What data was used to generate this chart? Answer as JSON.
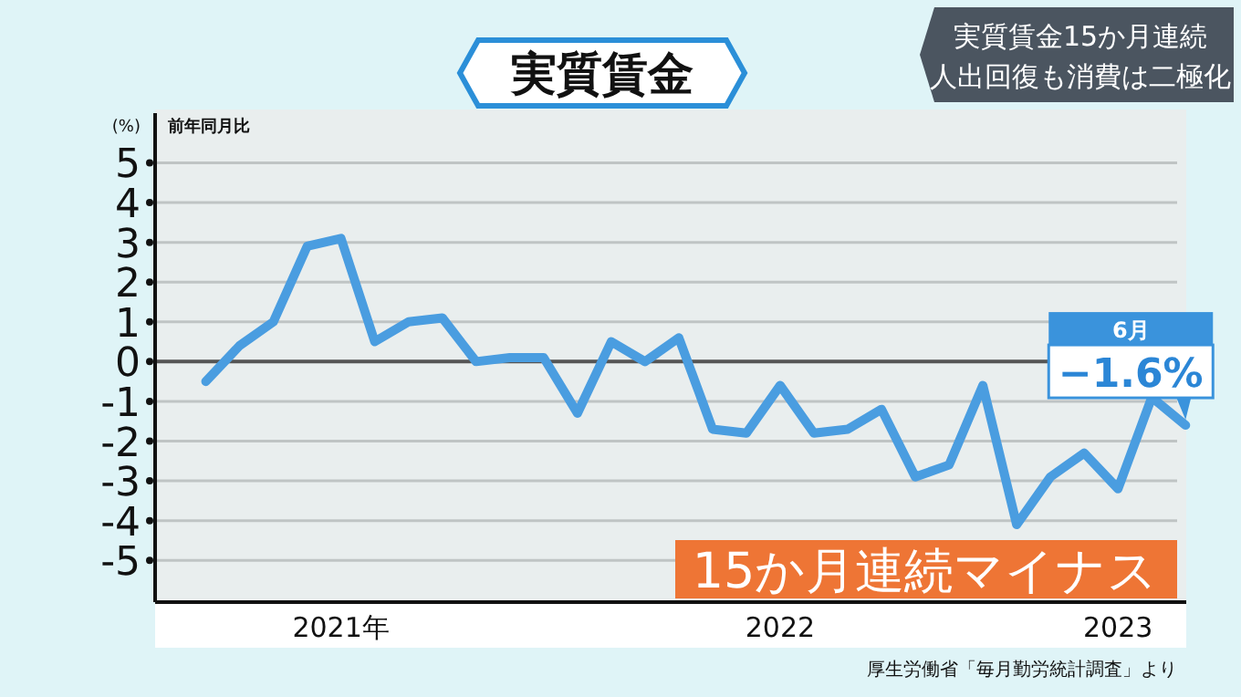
{
  "chart_data": {
    "type": "line",
    "title": "実質賃金",
    "subtitle": "実質賃金15か月連続",
    "ylabel": "(%)",
    "annotations": [
      "人出回復も消費は二極化",
      "前年同月比",
      "6月",
      {
        "text": "−1.6%",
        "y": -1.6
      },
      "15か月連続マイナス",
      "厚生労働省「毎月勤労統計調査」より"
    ],
    "categories": [
      null,
      null,
      null,
      null,
      "2021年",
      null,
      null,
      null,
      null,
      null,
      null,
      null,
      null,
      null,
      null,
      null,
      null,
      "2022",
      null,
      null,
      null,
      null,
      null,
      null,
      null,
      null,
      null,
      "2023",
      null,
      null
    ],
    "series": [
      {
        "color": "#4a9de0",
        "values": [
          -0.5,
          0.4,
          1.0,
          2.9,
          3.1,
          0.5,
          1.0,
          1.1,
          0.0,
          0.1,
          0.1,
          -1.3,
          0.5,
          0.0,
          0.6,
          -1.7,
          -1.8,
          -0.6,
          -1.8,
          -1.7,
          -1.2,
          -2.9,
          -2.6,
          -0.6,
          -4.1,
          -2.9,
          -2.3,
          -3.2,
          -0.9,
          -1.6
        ]
      }
    ],
    "ylim": [
      -6.05,
      6.25
    ],
    "yticks": [
      {
        "value": 5,
        "label": "5"
      },
      {
        "value": 4,
        "label": "4"
      },
      {
        "value": 3,
        "label": "3"
      },
      {
        "value": 2,
        "label": "2"
      },
      {
        "value": 1,
        "label": "1"
      },
      {
        "value": 0,
        "label": "0"
      },
      {
        "value": -1,
        "label": "-1"
      },
      {
        "value": -2,
        "label": "-2"
      },
      {
        "value": -3,
        "label": "-3"
      },
      {
        "value": -4,
        "label": "-4"
      },
      {
        "value": -5,
        "label": "-5"
      }
    ],
    "grid": "y",
    "ref_lines": [
      {
        "axis": "y",
        "value": 0,
        "color": "#555555"
      }
    ],
    "marker": "none",
    "line_style": "solid"
  }
}
